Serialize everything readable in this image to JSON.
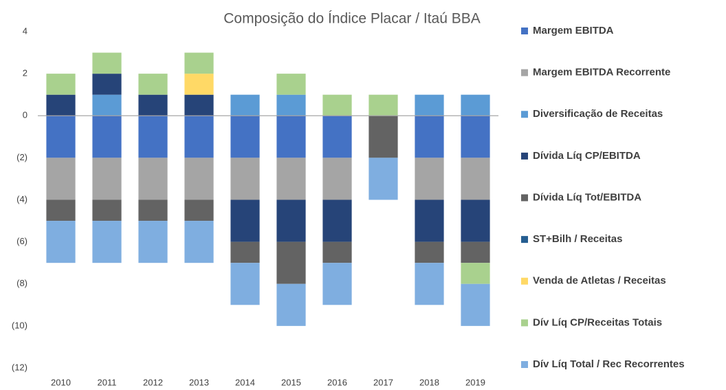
{
  "chart_data": {
    "type": "bar",
    "stacked": true,
    "title": "Composição do Índice Placar / Itaú BBA",
    "categories": [
      "2010",
      "2011",
      "2012",
      "2013",
      "2014",
      "2015",
      "2016",
      "2017",
      "2018",
      "2019"
    ],
    "series": [
      {
        "name": "Margem EBITDA",
        "color": "#4472c4",
        "values": [
          -2,
          -2,
          -2,
          -2,
          -2,
          -2,
          -2,
          0,
          -2,
          -2
        ]
      },
      {
        "name": "Margem EBITDA Recorrente",
        "color": "#a5a5a5",
        "values": [
          -2,
          -2,
          -2,
          -2,
          -2,
          -2,
          -2,
          0,
          -2,
          -2
        ]
      },
      {
        "name": "Diversificação de Receitas",
        "color": "#5b9bd5",
        "values": [
          0,
          1,
          0,
          0,
          1,
          1,
          0,
          0,
          1,
          1
        ]
      },
      {
        "name": "Dívida Líq CP/EBITDA",
        "color": "#264478",
        "values": [
          1,
          1,
          1,
          1,
          -2,
          -2,
          -2,
          0,
          -2,
          -2
        ]
      },
      {
        "name": "Dívida Líq Tot/EBITDA",
        "color": "#636363",
        "values": [
          -1,
          -1,
          -1,
          -1,
          -1,
          -2,
          -1,
          -2,
          -1,
          -1
        ]
      },
      {
        "name": "ST+Bilh / Receitas",
        "color": "#255e91",
        "values": [
          0,
          0,
          0,
          0,
          0,
          0,
          0,
          0,
          0,
          0
        ]
      },
      {
        "name": "Venda de Atletas / Receitas",
        "color": "#ffd966",
        "values": [
          0,
          0,
          0,
          1,
          0,
          0,
          0,
          0,
          0,
          0
        ]
      },
      {
        "name": "Dív Líq CP/Receitas Totais",
        "color": "#a9d18e",
        "values": [
          1,
          1,
          1,
          1,
          0,
          1,
          1,
          1,
          0,
          -1
        ]
      },
      {
        "name": "Dív Líq Total / Rec Recorrentes",
        "color": "#7faee0",
        "values": [
          -2,
          -2,
          -2,
          -2,
          -2,
          -2,
          -2,
          -2,
          -2,
          -2
        ]
      }
    ],
    "ylim": [
      -12,
      4
    ],
    "yticks": [
      {
        "value": -12,
        "label": "(12)"
      },
      {
        "value": -10,
        "label": "(10)"
      },
      {
        "value": -8,
        "label": "(8)"
      },
      {
        "value": -6,
        "label": "(6)"
      },
      {
        "value": -4,
        "label": "(4)"
      },
      {
        "value": -2,
        "label": "(2)"
      },
      0,
      2,
      4
    ],
    "negative_tick_color": "#ff0000",
    "grid": false,
    "legend": "right"
  }
}
